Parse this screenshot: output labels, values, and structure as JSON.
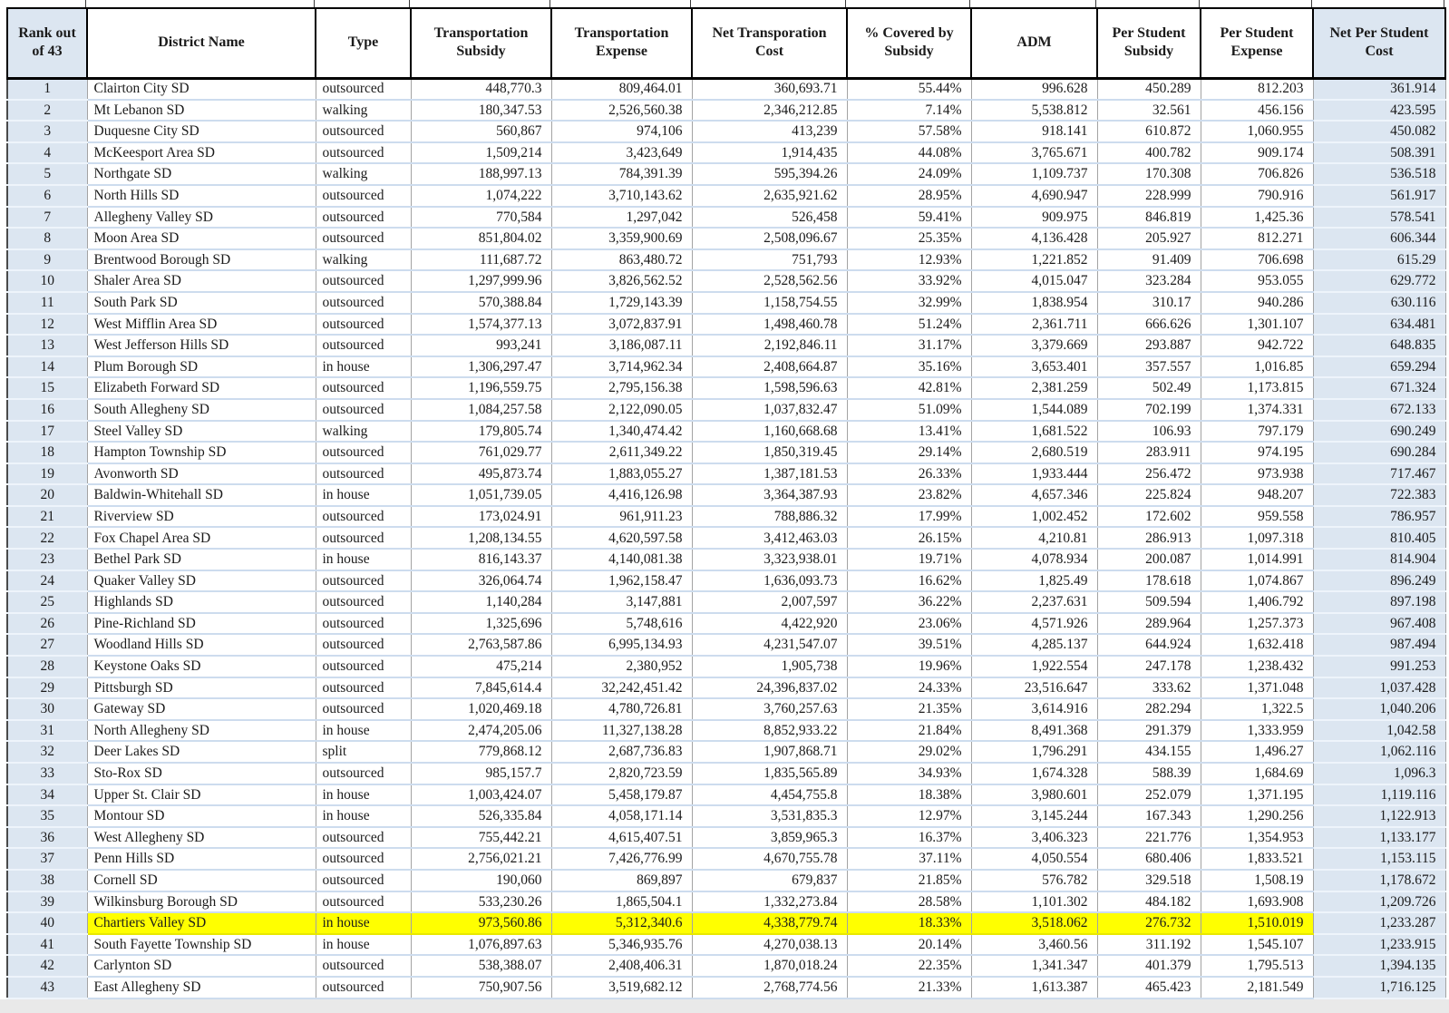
{
  "colors": {
    "band_blue": "#dce6f1",
    "highlight_yellow": "#ffff00"
  },
  "table": {
    "columns": [
      "Rank out of 43",
      "District Name",
      "Type",
      "Transportation Subsidy",
      "Transportation Expense",
      "Net Transporation Cost",
      "% Covered by Subsidy",
      "ADM",
      "Per Student Subsidy",
      "Per Student Expense",
      "Net Per Student Cost"
    ],
    "rows": [
      {
        "rank": "1",
        "name": "Clairton City SD",
        "type": "outsourced",
        "values": [
          "448,770.3",
          "809,464.01",
          "360,693.71",
          "55.44%",
          "996.628",
          "450.289",
          "812.203",
          "361.914"
        ]
      },
      {
        "rank": "2",
        "name": "Mt Lebanon SD",
        "type": "walking",
        "values": [
          "180,347.53",
          "2,526,560.38",
          "2,346,212.85",
          "7.14%",
          "5,538.812",
          "32.561",
          "456.156",
          "423.595"
        ]
      },
      {
        "rank": "3",
        "name": "Duquesne City SD",
        "type": "outsourced",
        "values": [
          "560,867",
          "974,106",
          "413,239",
          "57.58%",
          "918.141",
          "610.872",
          "1,060.955",
          "450.082"
        ]
      },
      {
        "rank": "4",
        "name": "McKeesport Area SD",
        "type": "outsourced",
        "values": [
          "1,509,214",
          "3,423,649",
          "1,914,435",
          "44.08%",
          "3,765.671",
          "400.782",
          "909.174",
          "508.391"
        ]
      },
      {
        "rank": "5",
        "name": "Northgate SD",
        "type": "walking",
        "values": [
          "188,997.13",
          "784,391.39",
          "595,394.26",
          "24.09%",
          "1,109.737",
          "170.308",
          "706.826",
          "536.518"
        ]
      },
      {
        "rank": "6",
        "name": "North Hills SD",
        "type": "outsourced",
        "values": [
          "1,074,222",
          "3,710,143.62",
          "2,635,921.62",
          "28.95%",
          "4,690.947",
          "228.999",
          "790.916",
          "561.917"
        ]
      },
      {
        "rank": "7",
        "name": "Allegheny Valley SD",
        "type": "outsourced",
        "values": [
          "770,584",
          "1,297,042",
          "526,458",
          "59.41%",
          "909.975",
          "846.819",
          "1,425.36",
          "578.541"
        ]
      },
      {
        "rank": "8",
        "name": "Moon Area SD",
        "type": "outsourced",
        "values": [
          "851,804.02",
          "3,359,900.69",
          "2,508,096.67",
          "25.35%",
          "4,136.428",
          "205.927",
          "812.271",
          "606.344"
        ]
      },
      {
        "rank": "9",
        "name": "Brentwood Borough SD",
        "type": "walking",
        "values": [
          "111,687.72",
          "863,480.72",
          "751,793",
          "12.93%",
          "1,221.852",
          "91.409",
          "706.698",
          "615.29"
        ]
      },
      {
        "rank": "10",
        "name": "Shaler Area SD",
        "type": "outsourced",
        "values": [
          "1,297,999.96",
          "3,826,562.52",
          "2,528,562.56",
          "33.92%",
          "4,015.047",
          "323.284",
          "953.055",
          "629.772"
        ]
      },
      {
        "rank": "11",
        "name": "South Park SD",
        "type": "outsourced",
        "values": [
          "570,388.84",
          "1,729,143.39",
          "1,158,754.55",
          "32.99%",
          "1,838.954",
          "310.17",
          "940.286",
          "630.116"
        ]
      },
      {
        "rank": "12",
        "name": "West Mifflin Area SD",
        "type": "outsourced",
        "values": [
          "1,574,377.13",
          "3,072,837.91",
          "1,498,460.78",
          "51.24%",
          "2,361.711",
          "666.626",
          "1,301.107",
          "634.481"
        ]
      },
      {
        "rank": "13",
        "name": "West Jefferson Hills SD",
        "type": "outsourced",
        "values": [
          "993,241",
          "3,186,087.11",
          "2,192,846.11",
          "31.17%",
          "3,379.669",
          "293.887",
          "942.722",
          "648.835"
        ]
      },
      {
        "rank": "14",
        "name": "Plum Borough SD",
        "type": "in house",
        "values": [
          "1,306,297.47",
          "3,714,962.34",
          "2,408,664.87",
          "35.16%",
          "3,653.401",
          "357.557",
          "1,016.85",
          "659.294"
        ]
      },
      {
        "rank": "15",
        "name": "Elizabeth Forward SD",
        "type": "outsourced",
        "values": [
          "1,196,559.75",
          "2,795,156.38",
          "1,598,596.63",
          "42.81%",
          "2,381.259",
          "502.49",
          "1,173.815",
          "671.324"
        ]
      },
      {
        "rank": "16",
        "name": "South Allegheny SD",
        "type": "outsourced",
        "values": [
          "1,084,257.58",
          "2,122,090.05",
          "1,037,832.47",
          "51.09%",
          "1,544.089",
          "702.199",
          "1,374.331",
          "672.133"
        ]
      },
      {
        "rank": "17",
        "name": "Steel Valley SD",
        "type": "walking",
        "values": [
          "179,805.74",
          "1,340,474.42",
          "1,160,668.68",
          "13.41%",
          "1,681.522",
          "106.93",
          "797.179",
          "690.249"
        ]
      },
      {
        "rank": "18",
        "name": "Hampton Township SD",
        "type": "outsourced",
        "values": [
          "761,029.77",
          "2,611,349.22",
          "1,850,319.45",
          "29.14%",
          "2,680.519",
          "283.911",
          "974.195",
          "690.284"
        ]
      },
      {
        "rank": "19",
        "name": "Avonworth SD",
        "type": "outsourced",
        "values": [
          "495,873.74",
          "1,883,055.27",
          "1,387,181.53",
          "26.33%",
          "1,933.444",
          "256.472",
          "973.938",
          "717.467"
        ]
      },
      {
        "rank": "20",
        "name": "Baldwin-Whitehall SD",
        "type": "in house",
        "values": [
          "1,051,739.05",
          "4,416,126.98",
          "3,364,387.93",
          "23.82%",
          "4,657.346",
          "225.824",
          "948.207",
          "722.383"
        ]
      },
      {
        "rank": "21",
        "name": "Riverview SD",
        "type": "outsourced",
        "values": [
          "173,024.91",
          "961,911.23",
          "788,886.32",
          "17.99%",
          "1,002.452",
          "172.602",
          "959.558",
          "786.957"
        ]
      },
      {
        "rank": "22",
        "name": "Fox Chapel Area SD",
        "type": "outsourced",
        "values": [
          "1,208,134.55",
          "4,620,597.58",
          "3,412,463.03",
          "26.15%",
          "4,210.81",
          "286.913",
          "1,097.318",
          "810.405"
        ]
      },
      {
        "rank": "23",
        "name": "Bethel Park SD",
        "type": "in house",
        "values": [
          "816,143.37",
          "4,140,081.38",
          "3,323,938.01",
          "19.71%",
          "4,078.934",
          "200.087",
          "1,014.991",
          "814.904"
        ]
      },
      {
        "rank": "24",
        "name": "Quaker Valley SD",
        "type": "outsourced",
        "values": [
          "326,064.74",
          "1,962,158.47",
          "1,636,093.73",
          "16.62%",
          "1,825.49",
          "178.618",
          "1,074.867",
          "896.249"
        ]
      },
      {
        "rank": "25",
        "name": "Highlands SD",
        "type": "outsourced",
        "values": [
          "1,140,284",
          "3,147,881",
          "2,007,597",
          "36.22%",
          "2,237.631",
          "509.594",
          "1,406.792",
          "897.198"
        ]
      },
      {
        "rank": "26",
        "name": "Pine-Richland SD",
        "type": "outsourced",
        "values": [
          "1,325,696",
          "5,748,616",
          "4,422,920",
          "23.06%",
          "4,571.926",
          "289.964",
          "1,257.373",
          "967.408"
        ]
      },
      {
        "rank": "27",
        "name": "Woodland Hills SD",
        "type": "outsourced",
        "values": [
          "2,763,587.86",
          "6,995,134.93",
          "4,231,547.07",
          "39.51%",
          "4,285.137",
          "644.924",
          "1,632.418",
          "987.494"
        ]
      },
      {
        "rank": "28",
        "name": "Keystone Oaks SD",
        "type": "outsourced",
        "values": [
          "475,214",
          "2,380,952",
          "1,905,738",
          "19.96%",
          "1,922.554",
          "247.178",
          "1,238.432",
          "991.253"
        ]
      },
      {
        "rank": "29",
        "name": "Pittsburgh SD",
        "type": "outsourced",
        "values": [
          "7,845,614.4",
          "32,242,451.42",
          "24,396,837.02",
          "24.33%",
          "23,516.647",
          "333.62",
          "1,371.048",
          "1,037.428"
        ]
      },
      {
        "rank": "30",
        "name": "Gateway SD",
        "type": "outsourced",
        "values": [
          "1,020,469.18",
          "4,780,726.81",
          "3,760,257.63",
          "21.35%",
          "3,614.916",
          "282.294",
          "1,322.5",
          "1,040.206"
        ]
      },
      {
        "rank": "31",
        "name": "North Allegheny SD",
        "type": "in house",
        "values": [
          "2,474,205.06",
          "11,327,138.28",
          "8,852,933.22",
          "21.84%",
          "8,491.368",
          "291.379",
          "1,333.959",
          "1,042.58"
        ]
      },
      {
        "rank": "32",
        "name": "Deer Lakes SD",
        "type": "split",
        "values": [
          "779,868.12",
          "2,687,736.83",
          "1,907,868.71",
          "29.02%",
          "1,796.291",
          "434.155",
          "1,496.27",
          "1,062.116"
        ]
      },
      {
        "rank": "33",
        "name": "Sto-Rox SD",
        "type": "outsourced",
        "values": [
          "985,157.7",
          "2,820,723.59",
          "1,835,565.89",
          "34.93%",
          "1,674.328",
          "588.39",
          "1,684.69",
          "1,096.3"
        ]
      },
      {
        "rank": "34",
        "name": "Upper St. Clair SD",
        "type": "in house",
        "values": [
          "1,003,424.07",
          "5,458,179.87",
          "4,454,755.8",
          "18.38%",
          "3,980.601",
          "252.079",
          "1,371.195",
          "1,119.116"
        ]
      },
      {
        "rank": "35",
        "name": "Montour SD",
        "type": "in house",
        "values": [
          "526,335.84",
          "4,058,171.14",
          "3,531,835.3",
          "12.97%",
          "3,145.244",
          "167.343",
          "1,290.256",
          "1,122.913"
        ]
      },
      {
        "rank": "36",
        "name": "West Allegheny SD",
        "type": "outsourced",
        "values": [
          "755,442.21",
          "4,615,407.51",
          "3,859,965.3",
          "16.37%",
          "3,406.323",
          "221.776",
          "1,354.953",
          "1,133.177"
        ]
      },
      {
        "rank": "37",
        "name": "Penn Hills SD",
        "type": "outsourced",
        "values": [
          "2,756,021.21",
          "7,426,776.99",
          "4,670,755.78",
          "37.11%",
          "4,050.554",
          "680.406",
          "1,833.521",
          "1,153.115"
        ]
      },
      {
        "rank": "38",
        "name": "Cornell SD",
        "type": "outsourced",
        "values": [
          "190,060",
          "869,897",
          "679,837",
          "21.85%",
          "576.782",
          "329.518",
          "1,508.19",
          "1,178.672"
        ]
      },
      {
        "rank": "39",
        "name": "Wilkinsburg Borough SD",
        "type": "outsourced",
        "values": [
          "533,230.26",
          "1,865,504.1",
          "1,332,273.84",
          "28.58%",
          "1,101.302",
          "484.182",
          "1,693.908",
          "1,209.726"
        ]
      },
      {
        "rank": "40",
        "name": "Chartiers Valley SD",
        "type": "in house",
        "highlighted": true,
        "values": [
          "973,560.86",
          "5,312,340.6",
          "4,338,779.74",
          "18.33%",
          "3,518.062",
          "276.732",
          "1,510.019",
          "1,233.287"
        ]
      },
      {
        "rank": "41",
        "name": "South Fayette Township SD",
        "type": "in house",
        "values": [
          "1,076,897.63",
          "5,346,935.76",
          "4,270,038.13",
          "20.14%",
          "3,460.56",
          "311.192",
          "1,545.107",
          "1,233.915"
        ]
      },
      {
        "rank": "42",
        "name": "Carlynton SD",
        "type": "outsourced",
        "values": [
          "538,388.07",
          "2,408,406.31",
          "1,870,018.24",
          "22.35%",
          "1,341.347",
          "401.379",
          "1,795.513",
          "1,394.135"
        ]
      },
      {
        "rank": "43",
        "name": "East Allegheny SD",
        "type": "outsourced",
        "values": [
          "750,907.56",
          "3,519,682.12",
          "2,768,774.56",
          "21.33%",
          "1,613.387",
          "465.423",
          "2,181.549",
          "1,716.125"
        ]
      }
    ]
  }
}
